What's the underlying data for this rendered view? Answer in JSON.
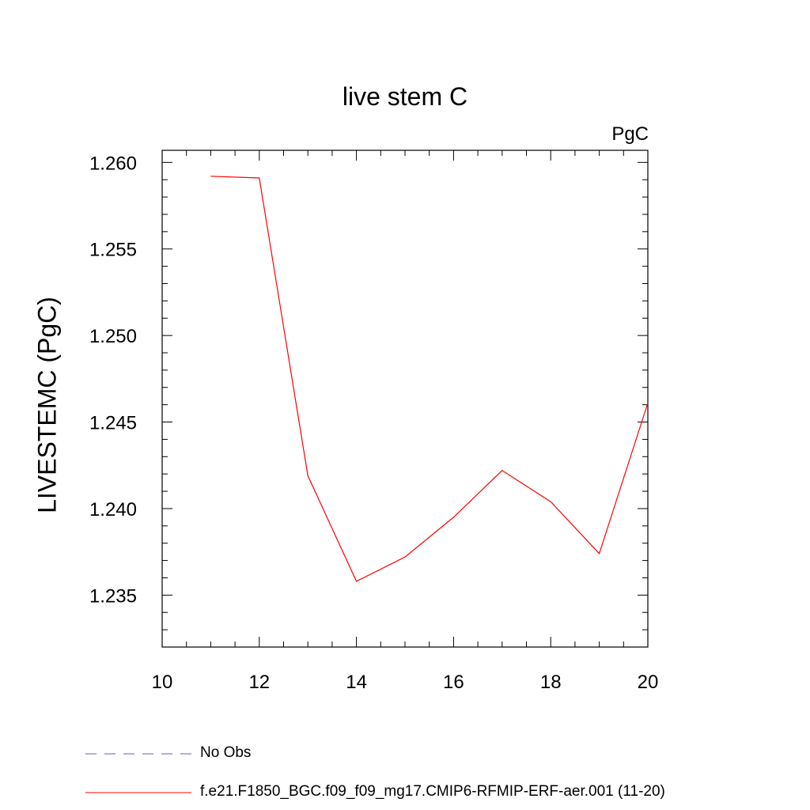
{
  "chart_data": {
    "type": "line",
    "title": "live stem C",
    "units_label": "PgC",
    "ylabel": "LIVESTEMC  (PgC)",
    "xlabel": "",
    "xlim": [
      10,
      20
    ],
    "ylim": [
      1.232,
      1.2607
    ],
    "x_ticks": [
      10,
      12,
      14,
      16,
      18,
      20
    ],
    "x_tick_labels": [
      "10",
      "12",
      "14",
      "16",
      "18",
      "20"
    ],
    "y_ticks": [
      1.235,
      1.24,
      1.245,
      1.25,
      1.255,
      1.26
    ],
    "y_tick_labels": [
      "1.235",
      "1.240",
      "1.245",
      "1.250",
      "1.255",
      "1.260"
    ],
    "grid": false,
    "legend_position": "bottom",
    "series": [
      {
        "name": "f.e21.F1850_BGC.f09_f09_mg17.CMIP6-RFMIP-ERF-aer.001 (11-20)",
        "color": "#ff0000",
        "dash": "solid",
        "x": [
          11,
          12,
          13,
          14,
          15,
          16,
          17,
          18,
          19,
          20
        ],
        "y": [
          1.2592,
          1.2591,
          1.2419,
          1.2358,
          1.2372,
          1.2395,
          1.2422,
          1.2404,
          1.2374,
          1.2461
        ]
      }
    ],
    "legend": [
      {
        "label": "No Obs",
        "color": "#6a5acd",
        "dash": "dashed"
      },
      {
        "label": "f.e21.F1850_BGC.f09_f09_mg17.CMIP6-RFMIP-ERF-aer.001 (11-20)",
        "color": "#ff0000",
        "dash": "solid"
      }
    ]
  }
}
